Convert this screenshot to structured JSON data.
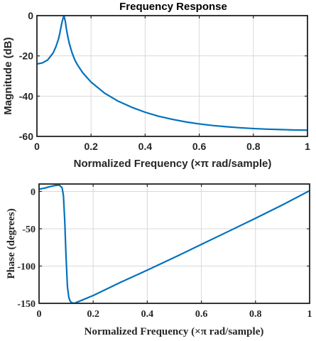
{
  "chart_data": [
    {
      "type": "line",
      "title": "Frequency Response",
      "xlabel": "Normalized Frequency  (×π rad/sample)",
      "ylabel": "Magnitude (dB)",
      "xlim": [
        0,
        1
      ],
      "ylim": [
        -60,
        0
      ],
      "xticks": [
        0,
        0.2,
        0.4,
        0.6,
        0.8,
        1
      ],
      "xtick_labels": [
        "0",
        "0.2",
        "0.4",
        "0.6",
        "0.8",
        "1"
      ],
      "yticks": [
        -60,
        -40,
        -20,
        0
      ],
      "ytick_labels": [
        "-60",
        "-40",
        "-20",
        "0"
      ],
      "grid": true,
      "line_color": "#0072BD",
      "series": [
        {
          "x": [
            0,
            0.02,
            0.04,
            0.06,
            0.07,
            0.08,
            0.085,
            0.09,
            0.095,
            0.1,
            0.105,
            0.11,
            0.115,
            0.12,
            0.13,
            0.14,
            0.15,
            0.17,
            0.2,
            0.25,
            0.3,
            0.35,
            0.4,
            0.45,
            0.5,
            0.55,
            0.6,
            0.65,
            0.7,
            0.75,
            0.8,
            0.85,
            0.9,
            0.95,
            1
          ],
          "y": [
            -24,
            -23.5,
            -22,
            -18.5,
            -15.5,
            -11.5,
            -8.5,
            -5,
            -2,
            0,
            -3,
            -7.5,
            -11,
            -14,
            -18.5,
            -22,
            -24.5,
            -28.5,
            -33,
            -38.5,
            -42.5,
            -45.5,
            -48,
            -50,
            -51.5,
            -52.8,
            -53.8,
            -54.6,
            -55.2,
            -55.7,
            -56.1,
            -56.4,
            -56.6,
            -56.8,
            -56.9
          ]
        }
      ]
    },
    {
      "type": "line",
      "title": "",
      "xlabel": "Normalized Frequency  (×π rad/sample)",
      "ylabel": "Phase (degrees)",
      "xlim": [
        0,
        1
      ],
      "ylim": [
        -150,
        10
      ],
      "xticks": [
        0,
        0.2,
        0.4,
        0.6,
        0.8,
        1
      ],
      "xtick_labels": [
        "0",
        "0.2",
        "0.4",
        "0.6",
        "0.8",
        "1"
      ],
      "yticks": [
        -150,
        -100,
        -50,
        0
      ],
      "ytick_labels": [
        "-150",
        "-100",
        "-50",
        "0"
      ],
      "grid": true,
      "line_color": "#0072BD",
      "series": [
        {
          "x": [
            0,
            0.02,
            0.04,
            0.06,
            0.075,
            0.085,
            0.09,
            0.095,
            0.1,
            0.105,
            0.11,
            0.115,
            0.12,
            0.13,
            0.14,
            0.2,
            0.3,
            0.4,
            0.5,
            0.6,
            0.7,
            0.8,
            0.9,
            1
          ],
          "y": [
            3,
            4.5,
            6.5,
            8,
            8.5,
            5,
            -5,
            -40,
            -90,
            -128,
            -142,
            -147,
            -149,
            -150,
            -148.5,
            -139.5,
            -122,
            -105.5,
            -88.5,
            -71,
            -53.5,
            -36,
            -18,
            1
          ]
        }
      ]
    }
  ]
}
